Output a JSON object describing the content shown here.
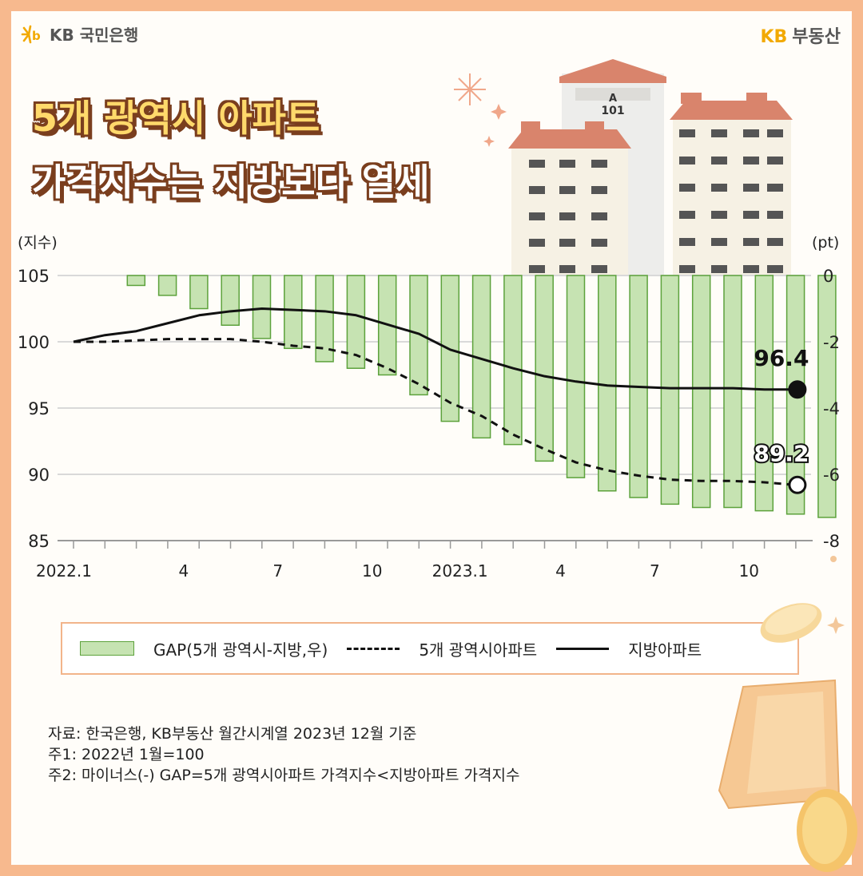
{
  "header": {
    "left_logo": "KB 국민은행",
    "right_logo_kb": "KB",
    "right_logo_text": "부동산"
  },
  "title": {
    "line1": "5개 광역시 아파트",
    "line2": "가격지수는 지방보다 열세"
  },
  "building_label": {
    "letter": "A",
    "number": "101"
  },
  "chart_data": {
    "type": "bar+line",
    "left_axis_label": "(지수)",
    "right_axis_label": "(pt)",
    "left_ylim": [
      85,
      105
    ],
    "left_ticks": [
      105,
      100,
      95,
      90,
      85
    ],
    "right_ylim": [
      -8,
      0
    ],
    "right_ticks": [
      0,
      -2,
      -4,
      -6,
      -8
    ],
    "x_tick_labels": [
      {
        "index": 0,
        "label": "2022.1"
      },
      {
        "index": 3,
        "label": "4"
      },
      {
        "index": 6,
        "label": "7"
      },
      {
        "index": 9,
        "label": "10"
      },
      {
        "index": 12,
        "label": "2023.1"
      },
      {
        "index": 15,
        "label": "4"
      },
      {
        "index": 18,
        "label": "7"
      },
      {
        "index": 21,
        "label": "10"
      }
    ],
    "months": 24,
    "gap_bars": [
      0,
      -0.3,
      -0.6,
      -1.0,
      -1.5,
      -1.9,
      -2.2,
      -2.6,
      -2.8,
      -3.0,
      -3.6,
      -4.4,
      -4.9,
      -5.1,
      -5.6,
      -6.1,
      -6.5,
      -6.7,
      -6.9,
      -7.0,
      -7.0,
      -7.1,
      -7.2,
      -7.3
    ],
    "series": [
      {
        "name": "5개 광역시아파트",
        "style": "dashed",
        "values": [
          100.0,
          100.0,
          100.1,
          100.2,
          100.2,
          100.2,
          100.0,
          99.7,
          99.5,
          99.0,
          98.0,
          96.8,
          95.4,
          94.4,
          93.0,
          91.9,
          90.9,
          90.3,
          89.9,
          89.6,
          89.5,
          89.5,
          89.4,
          89.2
        ],
        "end_label": "89.2",
        "end_marker": "open"
      },
      {
        "name": "지방아파트",
        "style": "solid",
        "values": [
          100.0,
          100.5,
          100.8,
          101.4,
          102.0,
          102.3,
          102.5,
          102.4,
          102.3,
          102.0,
          101.3,
          100.6,
          99.4,
          98.7,
          98.0,
          97.4,
          97.0,
          96.7,
          96.6,
          96.5,
          96.5,
          96.5,
          96.4,
          96.4
        ],
        "end_label": "96.4",
        "end_marker": "filled"
      }
    ],
    "colors": {
      "bar_fill": "#c6e3b2",
      "bar_stroke": "#5da23c",
      "line": "#111111",
      "grid": "#d9d9d9"
    }
  },
  "legend": {
    "gap": "GAP(5개 광역시-지방,우)",
    "metro": "5개 광역시아파트",
    "local": "지방아파트"
  },
  "notes": {
    "source": "자료: 한국은행, KB부동산 월간시계열 2023년 12월 기준",
    "note1": "주1: 2022년 1월=100",
    "note2": "주2: 마이너스(-) GAP=5개 광역시아파트 가격지수<지방아파트 가격지수"
  }
}
